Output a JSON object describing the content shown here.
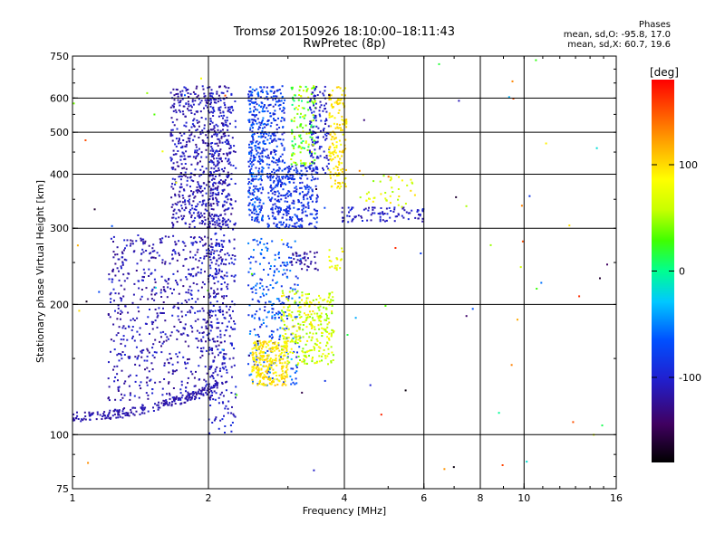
{
  "header": {
    "title_line1": "Tromsø 20150926 18:10:00–18:11:43",
    "title_line2": "RwPretec (8p)",
    "stats_title": "Phases",
    "stats_line1": "mean, sd,O: -95.8, 17.0",
    "stats_line2": "mean, sd,X: 60.7, 19.6"
  },
  "colorbar": {
    "unit": "[deg]",
    "range": [
      -180,
      180
    ],
    "ticks": [
      {
        "value": 100,
        "label": "100"
      },
      {
        "value": 0,
        "label": "0"
      },
      {
        "value": -100,
        "label": "-100"
      }
    ]
  },
  "chart_data": {
    "type": "scatter",
    "xlabel": "Frequency [MHz]",
    "ylabel": "Stationary phase Virtual Height [km]",
    "x_scale": "log",
    "y_scale": "log",
    "xlim": [
      1,
      16
    ],
    "ylim": [
      75,
      750
    ],
    "x_ticks": [
      {
        "value": 1,
        "label": "1"
      },
      {
        "value": 2,
        "label": "2"
      },
      {
        "value": 4,
        "label": "4"
      },
      {
        "value": 6,
        "label": "6"
      },
      {
        "value": 8,
        "label": "8"
      },
      {
        "value": 10,
        "label": "10"
      },
      {
        "value": 16,
        "label": "16"
      }
    ],
    "y_ticks": [
      {
        "value": 75,
        "label": "75"
      },
      {
        "value": 100,
        "label": "100"
      },
      {
        "value": 200,
        "label": "200"
      },
      {
        "value": 300,
        "label": "300"
      },
      {
        "value": 400,
        "label": "400"
      },
      {
        "value": 500,
        "label": "500"
      },
      {
        "value": 600,
        "label": "600"
      },
      {
        "value": 750,
        "label": "750"
      }
    ],
    "x_grid": [
      2,
      4,
      6,
      8,
      10
    ],
    "y_grid": [
      100,
      200,
      300,
      400,
      500,
      600
    ],
    "color_by": "phase [deg]",
    "clusters": [
      {
        "x": [
          1.0,
          2.05
        ],
        "y": [
          108,
          130
        ],
        "phase": [
          -125,
          -105
        ],
        "count": 220,
        "shape": "trace",
        "x0": 1.0,
        "y0": 110,
        "x1": 2.1,
        "y1": 130
      },
      {
        "x": [
          1.2,
          2.2
        ],
        "y": [
          120,
          290
        ],
        "phase": [
          -130,
          -95
        ],
        "count": 700
      },
      {
        "x": [
          1.65,
          2.25
        ],
        "y": [
          300,
          640
        ],
        "phase": [
          -130,
          -95
        ],
        "count": 650
      },
      {
        "x": [
          2.0,
          2.3
        ],
        "y": [
          100,
          640
        ],
        "phase": [
          -120,
          -90
        ],
        "count": 350
      },
      {
        "x": [
          2.45,
          2.65
        ],
        "y": [
          310,
          640
        ],
        "phase": [
          -105,
          -50
        ],
        "count": 300
      },
      {
        "x": [
          2.7,
          3.5
        ],
        "y": [
          300,
          420
        ],
        "phase": [
          -105,
          -70
        ],
        "count": 350
      },
      {
        "x": [
          2.65,
          2.95
        ],
        "y": [
          420,
          640
        ],
        "phase": [
          -110,
          -60
        ],
        "count": 160
      },
      {
        "x": [
          3.05,
          3.45
        ],
        "y": [
          420,
          640
        ],
        "phase": [
          0,
          80
        ],
        "count": 140
      },
      {
        "x": [
          3.35,
          3.7
        ],
        "y": [
          400,
          640
        ],
        "phase": [
          -120,
          -90
        ],
        "count": 120
      },
      {
        "x": [
          3.7,
          4.05
        ],
        "y": [
          370,
          640
        ],
        "phase": [
          80,
          110
        ],
        "count": 160
      },
      {
        "x": [
          2.45,
          3.2
        ],
        "y": [
          130,
          285
        ],
        "phase": [
          -100,
          -40
        ],
        "count": 280
      },
      {
        "x": [
          2.5,
          3.0
        ],
        "y": [
          130,
          165
        ],
        "phase": [
          80,
          110
        ],
        "count": 260
      },
      {
        "x": [
          2.9,
          3.8
        ],
        "y": [
          145,
          215
        ],
        "phase": [
          40,
          100
        ],
        "count": 300
      },
      {
        "x": [
          3.0,
          3.5
        ],
        "y": [
          240,
          265
        ],
        "phase": [
          -130,
          -110
        ],
        "count": 40
      },
      {
        "x": [
          3.7,
          4.0
        ],
        "y": [
          240,
          270
        ],
        "phase": [
          60,
          100
        ],
        "count": 20
      },
      {
        "x": [
          3.95,
          6.0
        ],
        "y": [
          310,
          335
        ],
        "phase": [
          -120,
          -90
        ],
        "count": 90
      },
      {
        "x": [
          4.3,
          5.8
        ],
        "y": [
          335,
          400
        ],
        "phase": [
          40,
          100
        ],
        "count": 40
      },
      {
        "x": [
          1.0,
          16.0
        ],
        "y": [
          78,
          740
        ],
        "phase": [
          -180,
          180
        ],
        "count": 80
      }
    ]
  }
}
